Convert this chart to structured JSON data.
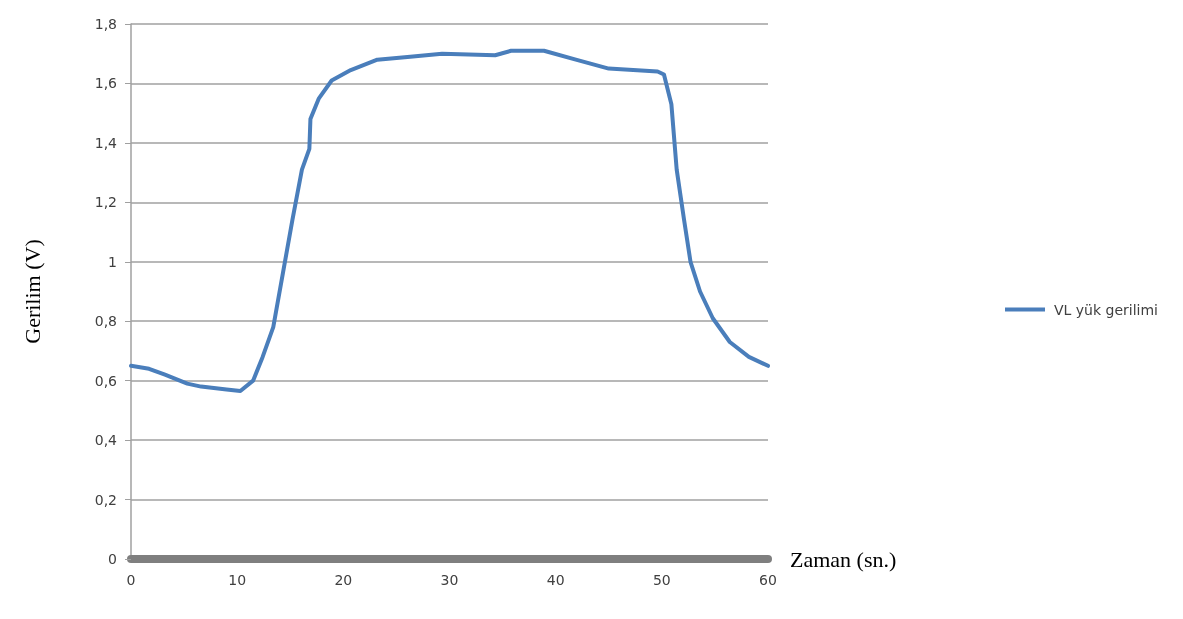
{
  "chart_data": {
    "type": "line",
    "xlabel": "Zaman (sn.)",
    "ylabel": "Gerilim (V)",
    "xlim": [
      0,
      60
    ],
    "xticks": [
      0,
      10,
      20,
      30,
      40,
      50,
      60
    ],
    "ylim": [
      0,
      1.8
    ],
    "yticks": [
      0,
      {
        "value": 0.2,
        "label": "0,2"
      },
      {
        "value": 0.4,
        "label": "0,4"
      },
      {
        "value": 0.6,
        "label": "0,6"
      },
      {
        "value": 0.8,
        "label": "0,8"
      },
      1,
      {
        "value": 1.2,
        "label": "1,2"
      },
      {
        "value": 1.4,
        "label": "1,4"
      },
      {
        "value": 1.6,
        "label": "1,6"
      },
      {
        "value": 1.8,
        "label": "1,8"
      }
    ],
    "grid": "y",
    "legend": "right",
    "marker": "none",
    "line_style": "solid",
    "series": [
      {
        "name": "VL yük gerilimi",
        "color": "#4a7ebb",
        "x": [
          0,
          1.7,
          3.2,
          5.3,
          6.6,
          9.0,
          10.3,
          11.5,
          12.4,
          13.4,
          14.3,
          15.2,
          16.1,
          16.8,
          16.9,
          17.7,
          18.9,
          20.7,
          23.2,
          26.3,
          29.3,
          34.3,
          35.8,
          38.9,
          41.9,
          45.0,
          49.6,
          50.2,
          50.9,
          51.4,
          52.1,
          52.7,
          53.6,
          54.8,
          56.4,
          58.2,
          60
        ],
        "values": [
          0.65,
          0.64,
          0.62,
          0.59,
          0.58,
          0.57,
          0.565,
          0.6,
          0.68,
          0.78,
          0.96,
          1.14,
          1.31,
          1.38,
          1.48,
          1.55,
          1.61,
          1.645,
          1.68,
          1.69,
          1.7,
          1.695,
          1.71,
          1.71,
          1.68,
          1.65,
          1.64,
          1.63,
          1.53,
          1.31,
          1.14,
          1.0,
          0.9,
          0.81,
          0.73,
          0.68,
          0.65
        ]
      }
    ]
  }
}
